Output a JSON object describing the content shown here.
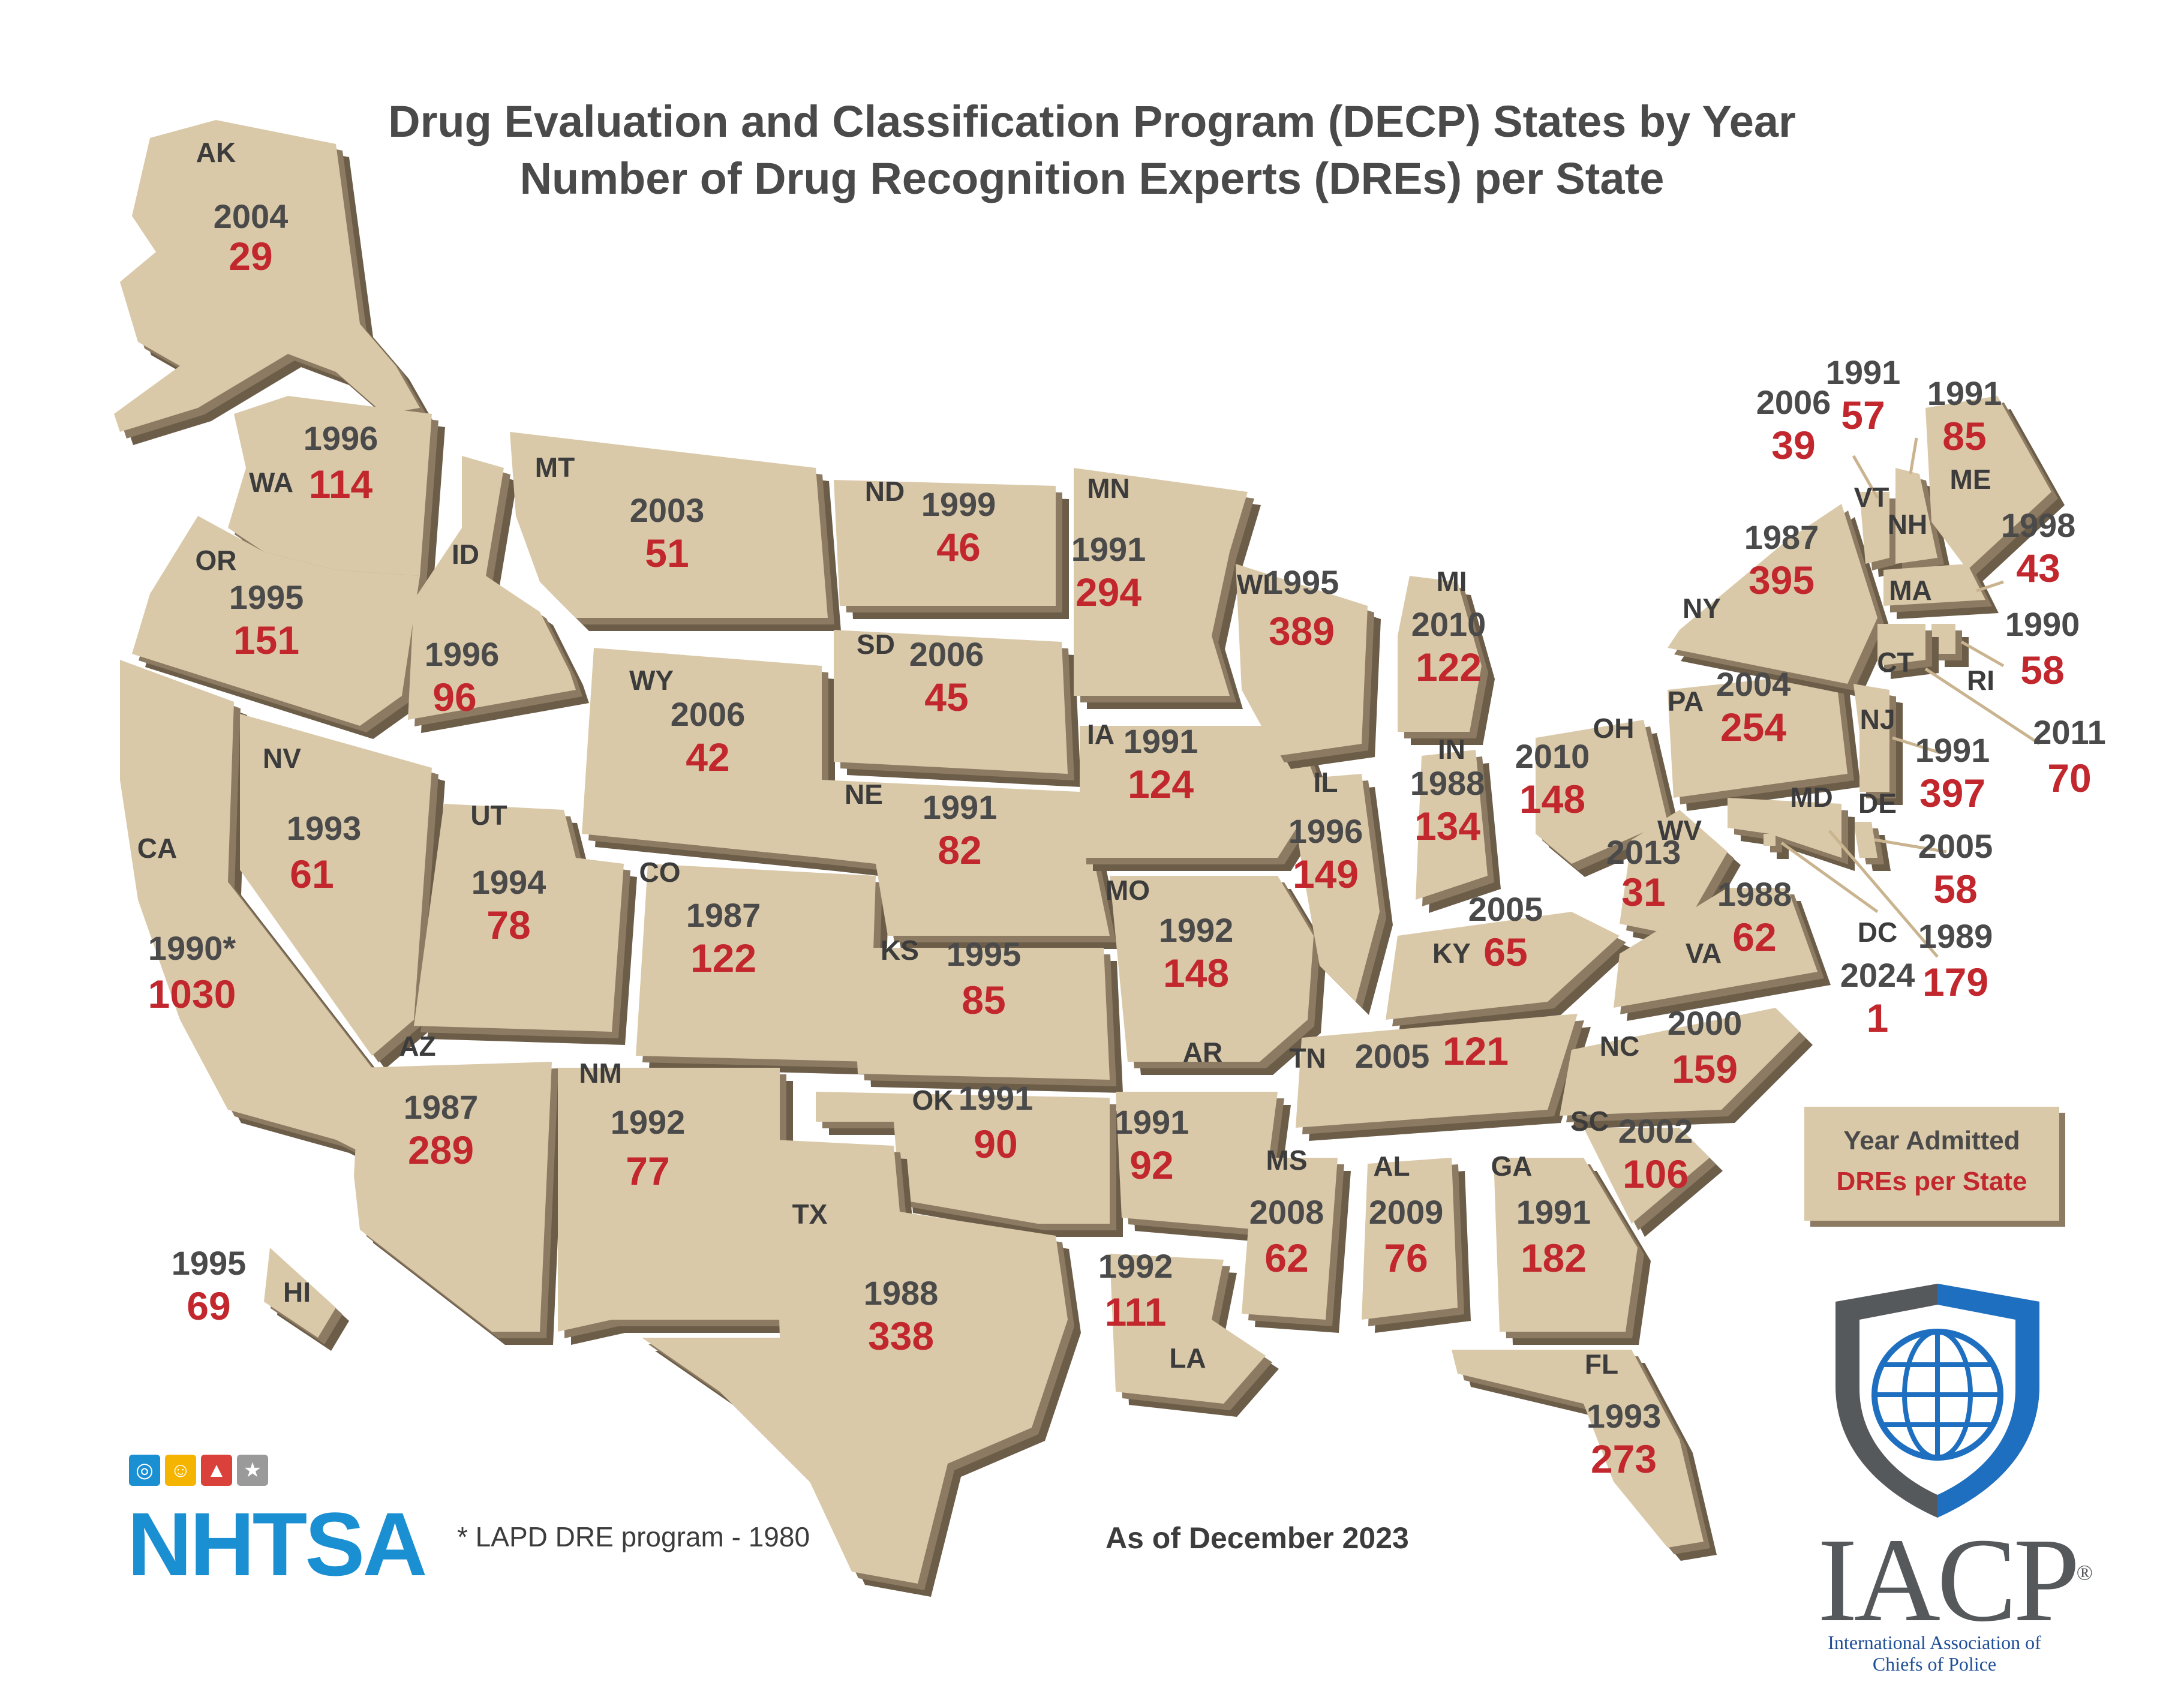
{
  "title": {
    "line1": "Drug Evaluation and Classification Program (DECP) States by Year",
    "line2": "Number of Drug Recognition Experts (DREs) per State"
  },
  "legend": {
    "year_label": "Year Admitted",
    "dre_label": "DREs per State",
    "year_color": "#4a4a4a",
    "dre_color": "#c1272d"
  },
  "colors": {
    "state_fill": "#dac9a8",
    "state_side": "#8c7b62",
    "nhtsa_blue": "#1a8fd1",
    "iacp_gray": "#55595c",
    "iacp_blue": "#1f4f97"
  },
  "footnote": "* LAPD DRE program - 1980",
  "as_of": "As of December 2023",
  "logos": {
    "nhtsa": "NHTSA",
    "nhtsa_icons": [
      "steering-wheel-icon",
      "pedestrian-icon",
      "road-icon",
      "star-icon"
    ],
    "iacp": "IACP",
    "iacp_mark": "®",
    "iacp_full": "International Association of Chiefs of Police"
  },
  "states": [
    {
      "abbr": "AK",
      "year": "2004",
      "dres": "29"
    },
    {
      "abbr": "WA",
      "year": "1996",
      "dres": "114"
    },
    {
      "abbr": "OR",
      "year": "1995",
      "dres": "151"
    },
    {
      "abbr": "CA",
      "year": "1990*",
      "dres": "1030"
    },
    {
      "abbr": "NV",
      "year": "1993",
      "dres": "61"
    },
    {
      "abbr": "ID",
      "year": "1996",
      "dres": "96"
    },
    {
      "abbr": "MT",
      "year": "2003",
      "dres": "51"
    },
    {
      "abbr": "WY",
      "year": "2006",
      "dres": "42"
    },
    {
      "abbr": "UT",
      "year": "1994",
      "dres": "78"
    },
    {
      "abbr": "CO",
      "year": "1987",
      "dres": "122"
    },
    {
      "abbr": "AZ",
      "year": "1987",
      "dres": "289"
    },
    {
      "abbr": "NM",
      "year": "1992",
      "dres": "77"
    },
    {
      "abbr": "HI",
      "year": "1995",
      "dres": "69"
    },
    {
      "abbr": "ND",
      "year": "1999",
      "dres": "46"
    },
    {
      "abbr": "SD",
      "year": "2006",
      "dres": "45"
    },
    {
      "abbr": "NE",
      "year": "1991",
      "dres": "82"
    },
    {
      "abbr": "KS",
      "year": "1995",
      "dres": "85"
    },
    {
      "abbr": "OK",
      "year": "1991",
      "dres": "90"
    },
    {
      "abbr": "TX",
      "year": "1988",
      "dres": "338"
    },
    {
      "abbr": "MN",
      "year": "1991",
      "dres": "294"
    },
    {
      "abbr": "IA",
      "year": "1991",
      "dres": "124"
    },
    {
      "abbr": "MO",
      "year": "1992",
      "dres": "148"
    },
    {
      "abbr": "AR",
      "year": "1991",
      "dres": "92"
    },
    {
      "abbr": "LA",
      "year": "1992",
      "dres": "111"
    },
    {
      "abbr": "WI",
      "year": "1995",
      "dres": "389"
    },
    {
      "abbr": "IL",
      "year": "1996",
      "dres": "149"
    },
    {
      "abbr": "MS",
      "year": "2008",
      "dres": "62"
    },
    {
      "abbr": "MI",
      "year": "2010",
      "dres": "122"
    },
    {
      "abbr": "IN",
      "year": "1988",
      "dres": "134"
    },
    {
      "abbr": "KY",
      "year": "2005",
      "dres": "65"
    },
    {
      "abbr": "TN",
      "year": "2005",
      "dres": "121"
    },
    {
      "abbr": "AL",
      "year": "2009",
      "dres": "76"
    },
    {
      "abbr": "OH",
      "year": "2010",
      "dres": "148"
    },
    {
      "abbr": "GA",
      "year": "1991",
      "dres": "182"
    },
    {
      "abbr": "FL",
      "year": "1993",
      "dres": "273"
    },
    {
      "abbr": "WV",
      "year": "2013",
      "dres": "31"
    },
    {
      "abbr": "VA",
      "year": "1988",
      "dres": "62"
    },
    {
      "abbr": "NC",
      "year": "2000",
      "dres": "159"
    },
    {
      "abbr": "SC",
      "year": "2002",
      "dres": "106"
    },
    {
      "abbr": "PA",
      "year": "2004",
      "dres": "254"
    },
    {
      "abbr": "NY",
      "year": "1987",
      "dres": "395"
    },
    {
      "abbr": "VT",
      "year": "2006",
      "dres": "39"
    },
    {
      "abbr": "NH",
      "year": "1991",
      "dres": "57"
    },
    {
      "abbr": "ME",
      "year": "1991",
      "dres": "85"
    },
    {
      "abbr": "MA",
      "year": "1998",
      "dres": "43"
    },
    {
      "abbr": "RI",
      "year": "1990",
      "dres": "58"
    },
    {
      "abbr": "CT",
      "year": "2011",
      "dres": "70"
    },
    {
      "abbr": "NJ",
      "year": "1991",
      "dres": "397"
    },
    {
      "abbr": "DE",
      "year": "2005",
      "dres": "58"
    },
    {
      "abbr": "MD",
      "year": "1989",
      "dres": "179"
    },
    {
      "abbr": "DC",
      "year": "2024",
      "dres": "1"
    }
  ]
}
